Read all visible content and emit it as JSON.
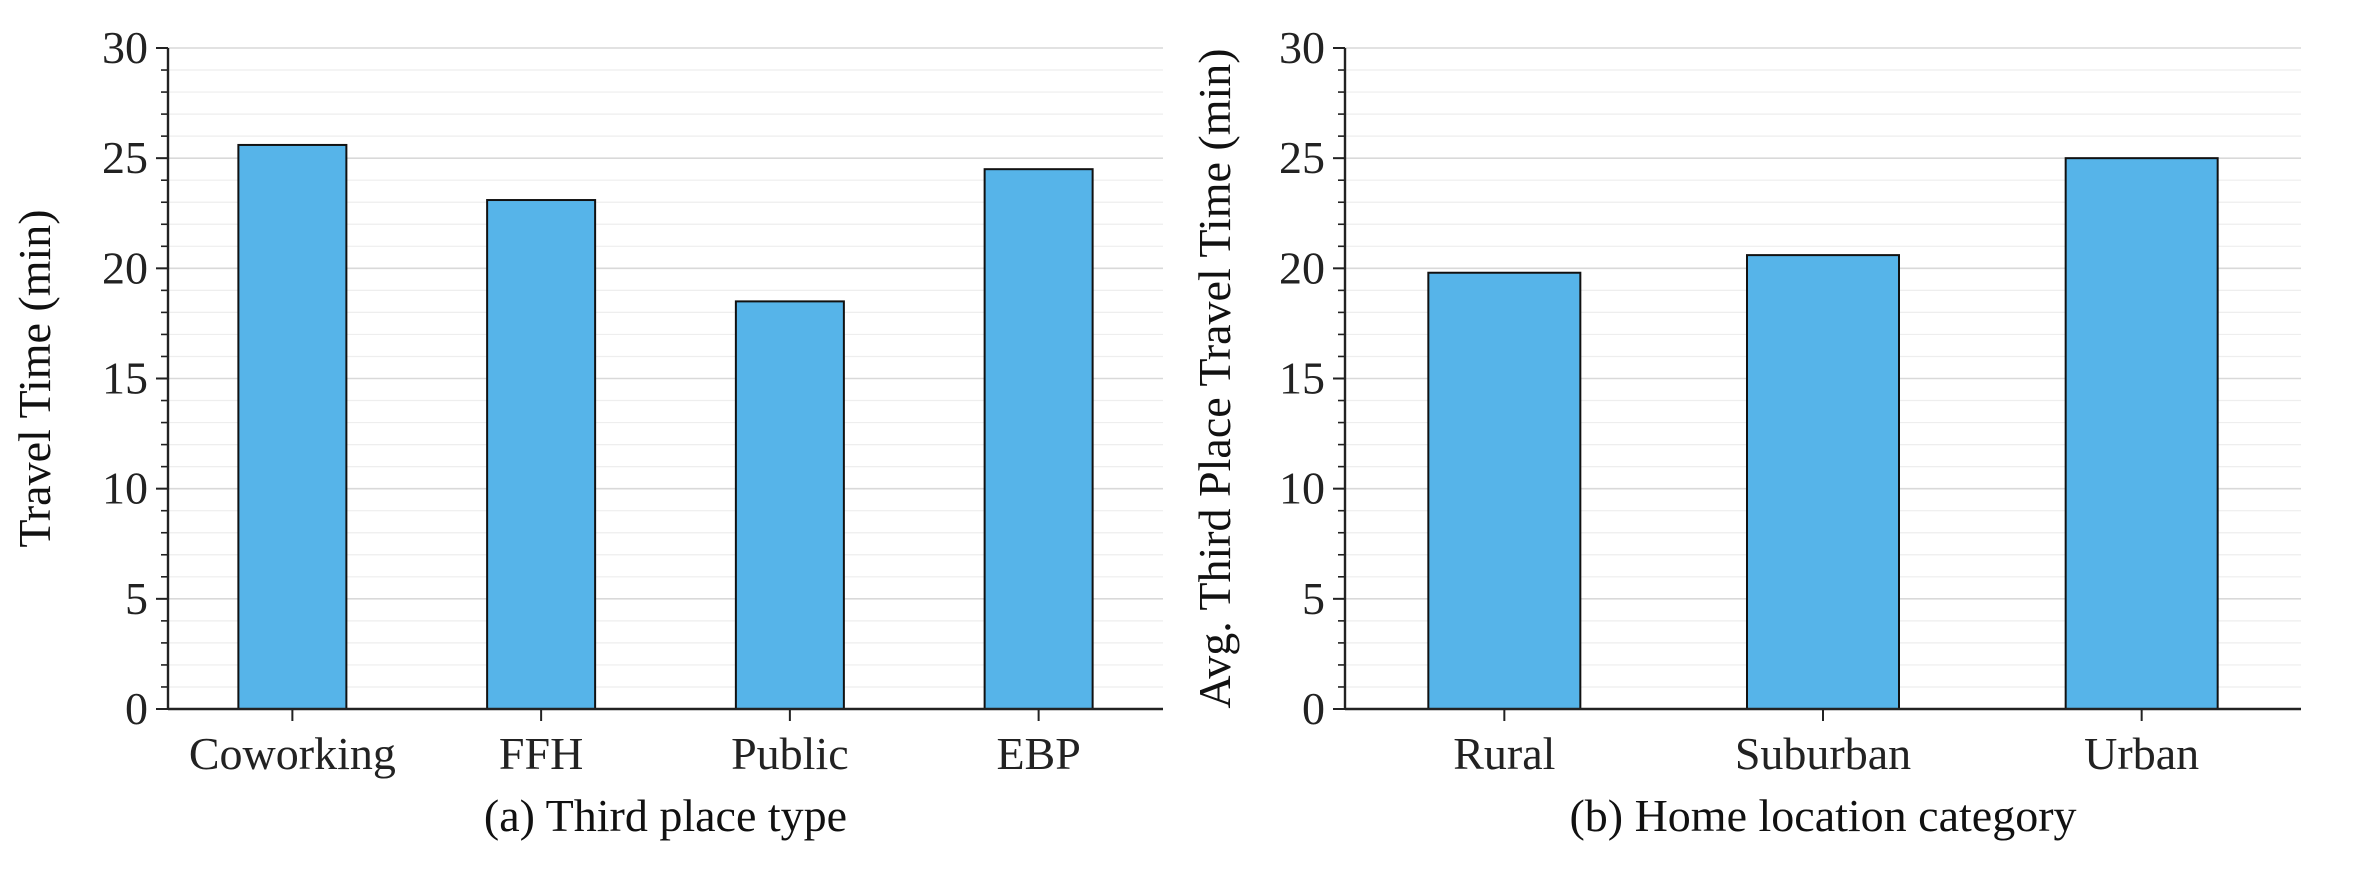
{
  "colors": {
    "bar_fill": "#56B4E9",
    "bar_stroke": "#111111",
    "axis": "#222222",
    "grid_major": "#d9d9d9",
    "grid_minor": "#eeeeee"
  },
  "chart_data": [
    {
      "type": "bar",
      "categories": [
        "Coworking",
        "FFH",
        "Public",
        "EBP"
      ],
      "values": [
        25.6,
        23.1,
        18.5,
        24.5
      ],
      "xlabel": "(a) Third place type",
      "ylabel": "Travel Time (min)",
      "ylim": [
        0,
        30
      ],
      "yticks": [
        0,
        5,
        10,
        15,
        20,
        25,
        30
      ],
      "grid": true,
      "legend": "none"
    },
    {
      "type": "bar",
      "categories": [
        "Rural",
        "Suburban",
        "Urban"
      ],
      "values": [
        19.8,
        20.6,
        25.0
      ],
      "xlabel": "(b) Home location category",
      "ylabel": "Avg. Third Place Travel Time (min)",
      "ylim": [
        0,
        30
      ],
      "yticks": [
        0,
        5,
        10,
        15,
        20,
        25,
        30
      ],
      "grid": true,
      "legend": "none"
    }
  ]
}
